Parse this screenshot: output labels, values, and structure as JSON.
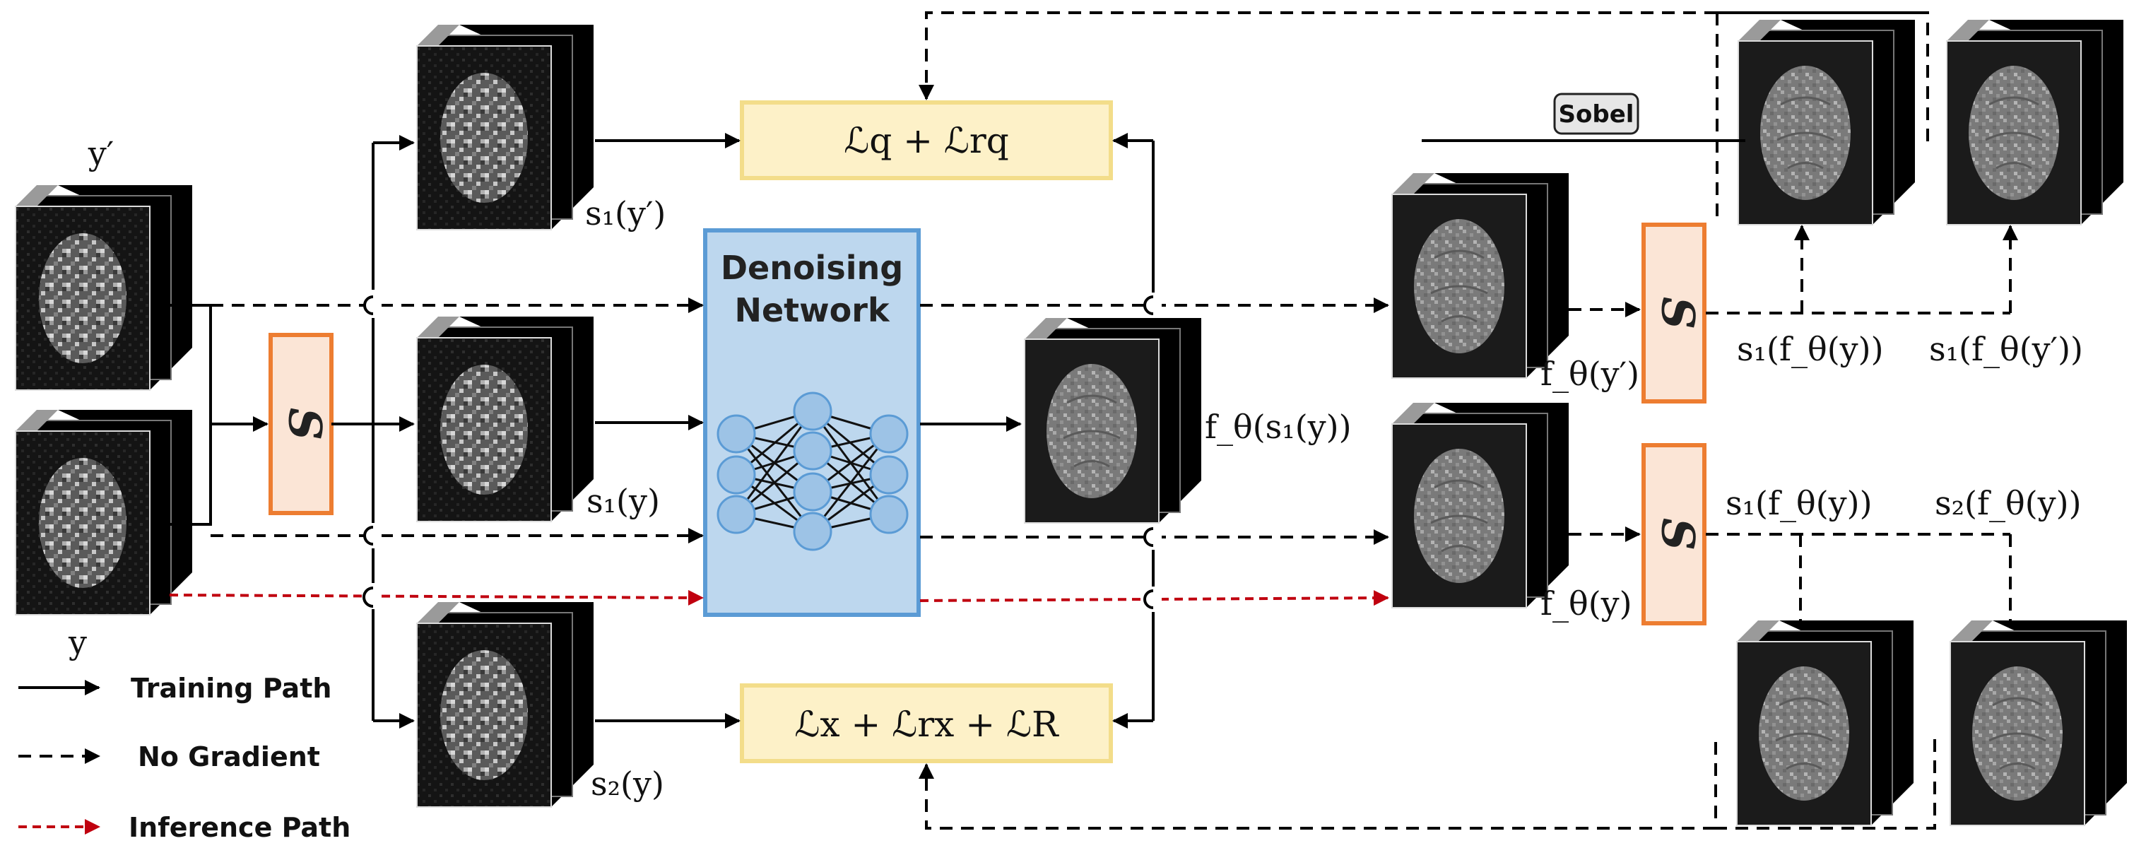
{
  "labels": {
    "y_prime": "y′",
    "y": "y",
    "s1_y_prime": "s₁(y′)",
    "s1_y": "s₁(y)",
    "s2_y": "s₂(y)",
    "f_s1_y": "f_θ(s₁(y))",
    "f_y_prime": "f_θ(y′)",
    "f_y": "f_θ(y)",
    "s1_f_y_top": "s₁(f_θ(y))",
    "s1_f_y_prime": "s₁(f_θ(y′))",
    "s1_f_y_bottom": "s₁(f_θ(y))",
    "s2_f_y": "s₂(f_θ(y))"
  },
  "losses": {
    "top": "ℒq + ℒrq",
    "bottom": "ℒx + ℒrx + ℒR"
  },
  "network": {
    "line1": "Denoising",
    "line2": "Network"
  },
  "sobel": "Sobel",
  "s_symbol": "S",
  "legend": {
    "training": "Training Path",
    "no_gradient": "No Gradient",
    "inference": "Inference Path"
  },
  "colors": {
    "loss_fill": "#fdf1c8",
    "loss_border": "#f3dd8a",
    "network_fill": "#bdd7ee",
    "network_border": "#5b9bd5",
    "s_fill": "#fbe5d6",
    "s_border": "#ed7d31",
    "inference": "#c0000f"
  }
}
